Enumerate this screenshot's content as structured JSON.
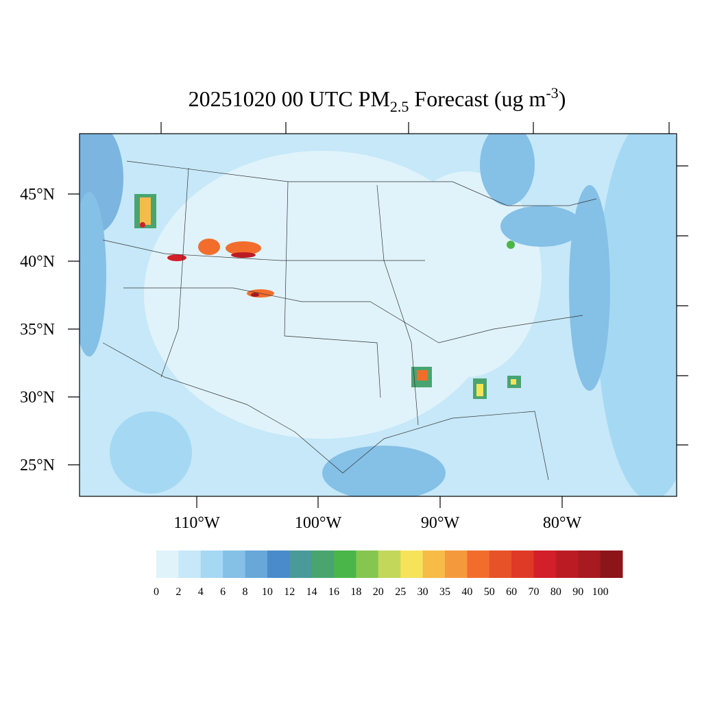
{
  "title": {
    "main": "20251020 00 UTC PM",
    "sub": "2.5",
    "rest": " Forecast (ug m",
    "sup": "-3",
    "end": ")"
  },
  "latitude_labels": [
    "45°N",
    "40°N",
    "35°N",
    "30°N",
    "25°N"
  ],
  "longitude_labels": [
    "110°W",
    "100°W",
    "90°W",
    "80°W"
  ],
  "colorbar": {
    "labels": [
      "0",
      "2",
      "4",
      "6",
      "8",
      "10",
      "12",
      "14",
      "16",
      "18",
      "20",
      "25",
      "30",
      "35",
      "40",
      "50",
      "60",
      "70",
      "80",
      "90",
      "100"
    ],
    "colors": [
      "#e0f3fa",
      "#c6e8f8",
      "#a5d8f3",
      "#85c0e6",
      "#68a8d9",
      "#4a8bcb",
      "#4a9a9a",
      "#4aa470",
      "#4ab64a",
      "#86c650",
      "#c3d85a",
      "#f6e35a",
      "#f7bb48",
      "#f59a3c",
      "#f26d2c",
      "#e85228",
      "#de3a26",
      "#d21f2a",
      "#bb1c24",
      "#a71a1f",
      "#8c1519"
    ]
  }
}
